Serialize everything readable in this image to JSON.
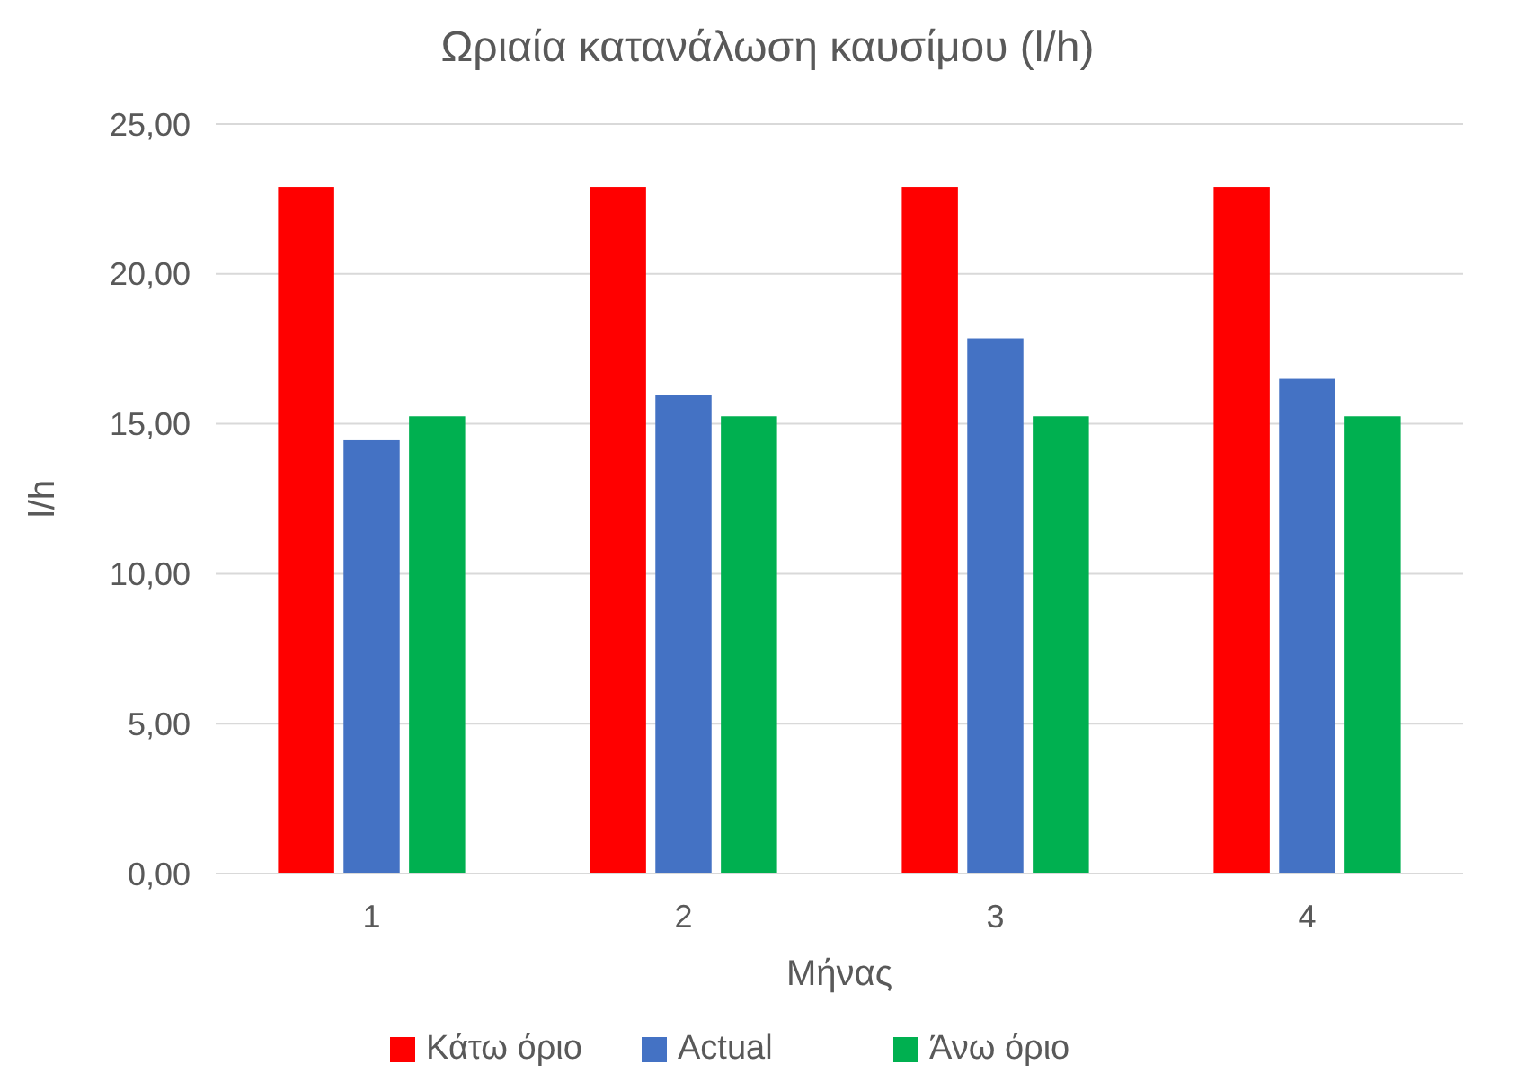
{
  "chart_data": {
    "type": "bar",
    "title": "Ωριαία κατανάλωση καυσίμου (l/h)",
    "xlabel": "Μήνας",
    "ylabel": "l/h",
    "categories": [
      "1",
      "2",
      "3",
      "4"
    ],
    "series": [
      {
        "name": "Κάτω όριο",
        "color": "#ff0000",
        "values": [
          22.9,
          22.9,
          22.9,
          22.9
        ]
      },
      {
        "name": "Actual",
        "color": "#4472c4",
        "values": [
          14.45,
          15.95,
          17.85,
          16.5
        ]
      },
      {
        "name": "Άνω όριο",
        "color": "#00b050",
        "values": [
          15.25,
          15.25,
          15.25,
          15.25
        ]
      }
    ],
    "ylim": [
      0,
      25
    ],
    "yticks": [
      {
        "value": 0,
        "label": "0,00"
      },
      {
        "value": 5,
        "label": "5,00"
      },
      {
        "value": 10,
        "label": "10,00"
      },
      {
        "value": 15,
        "label": "15,00"
      },
      {
        "value": 20,
        "label": "20,00"
      },
      {
        "value": 25,
        "label": "25,00"
      }
    ],
    "grid": "y",
    "legend": "bottom"
  }
}
